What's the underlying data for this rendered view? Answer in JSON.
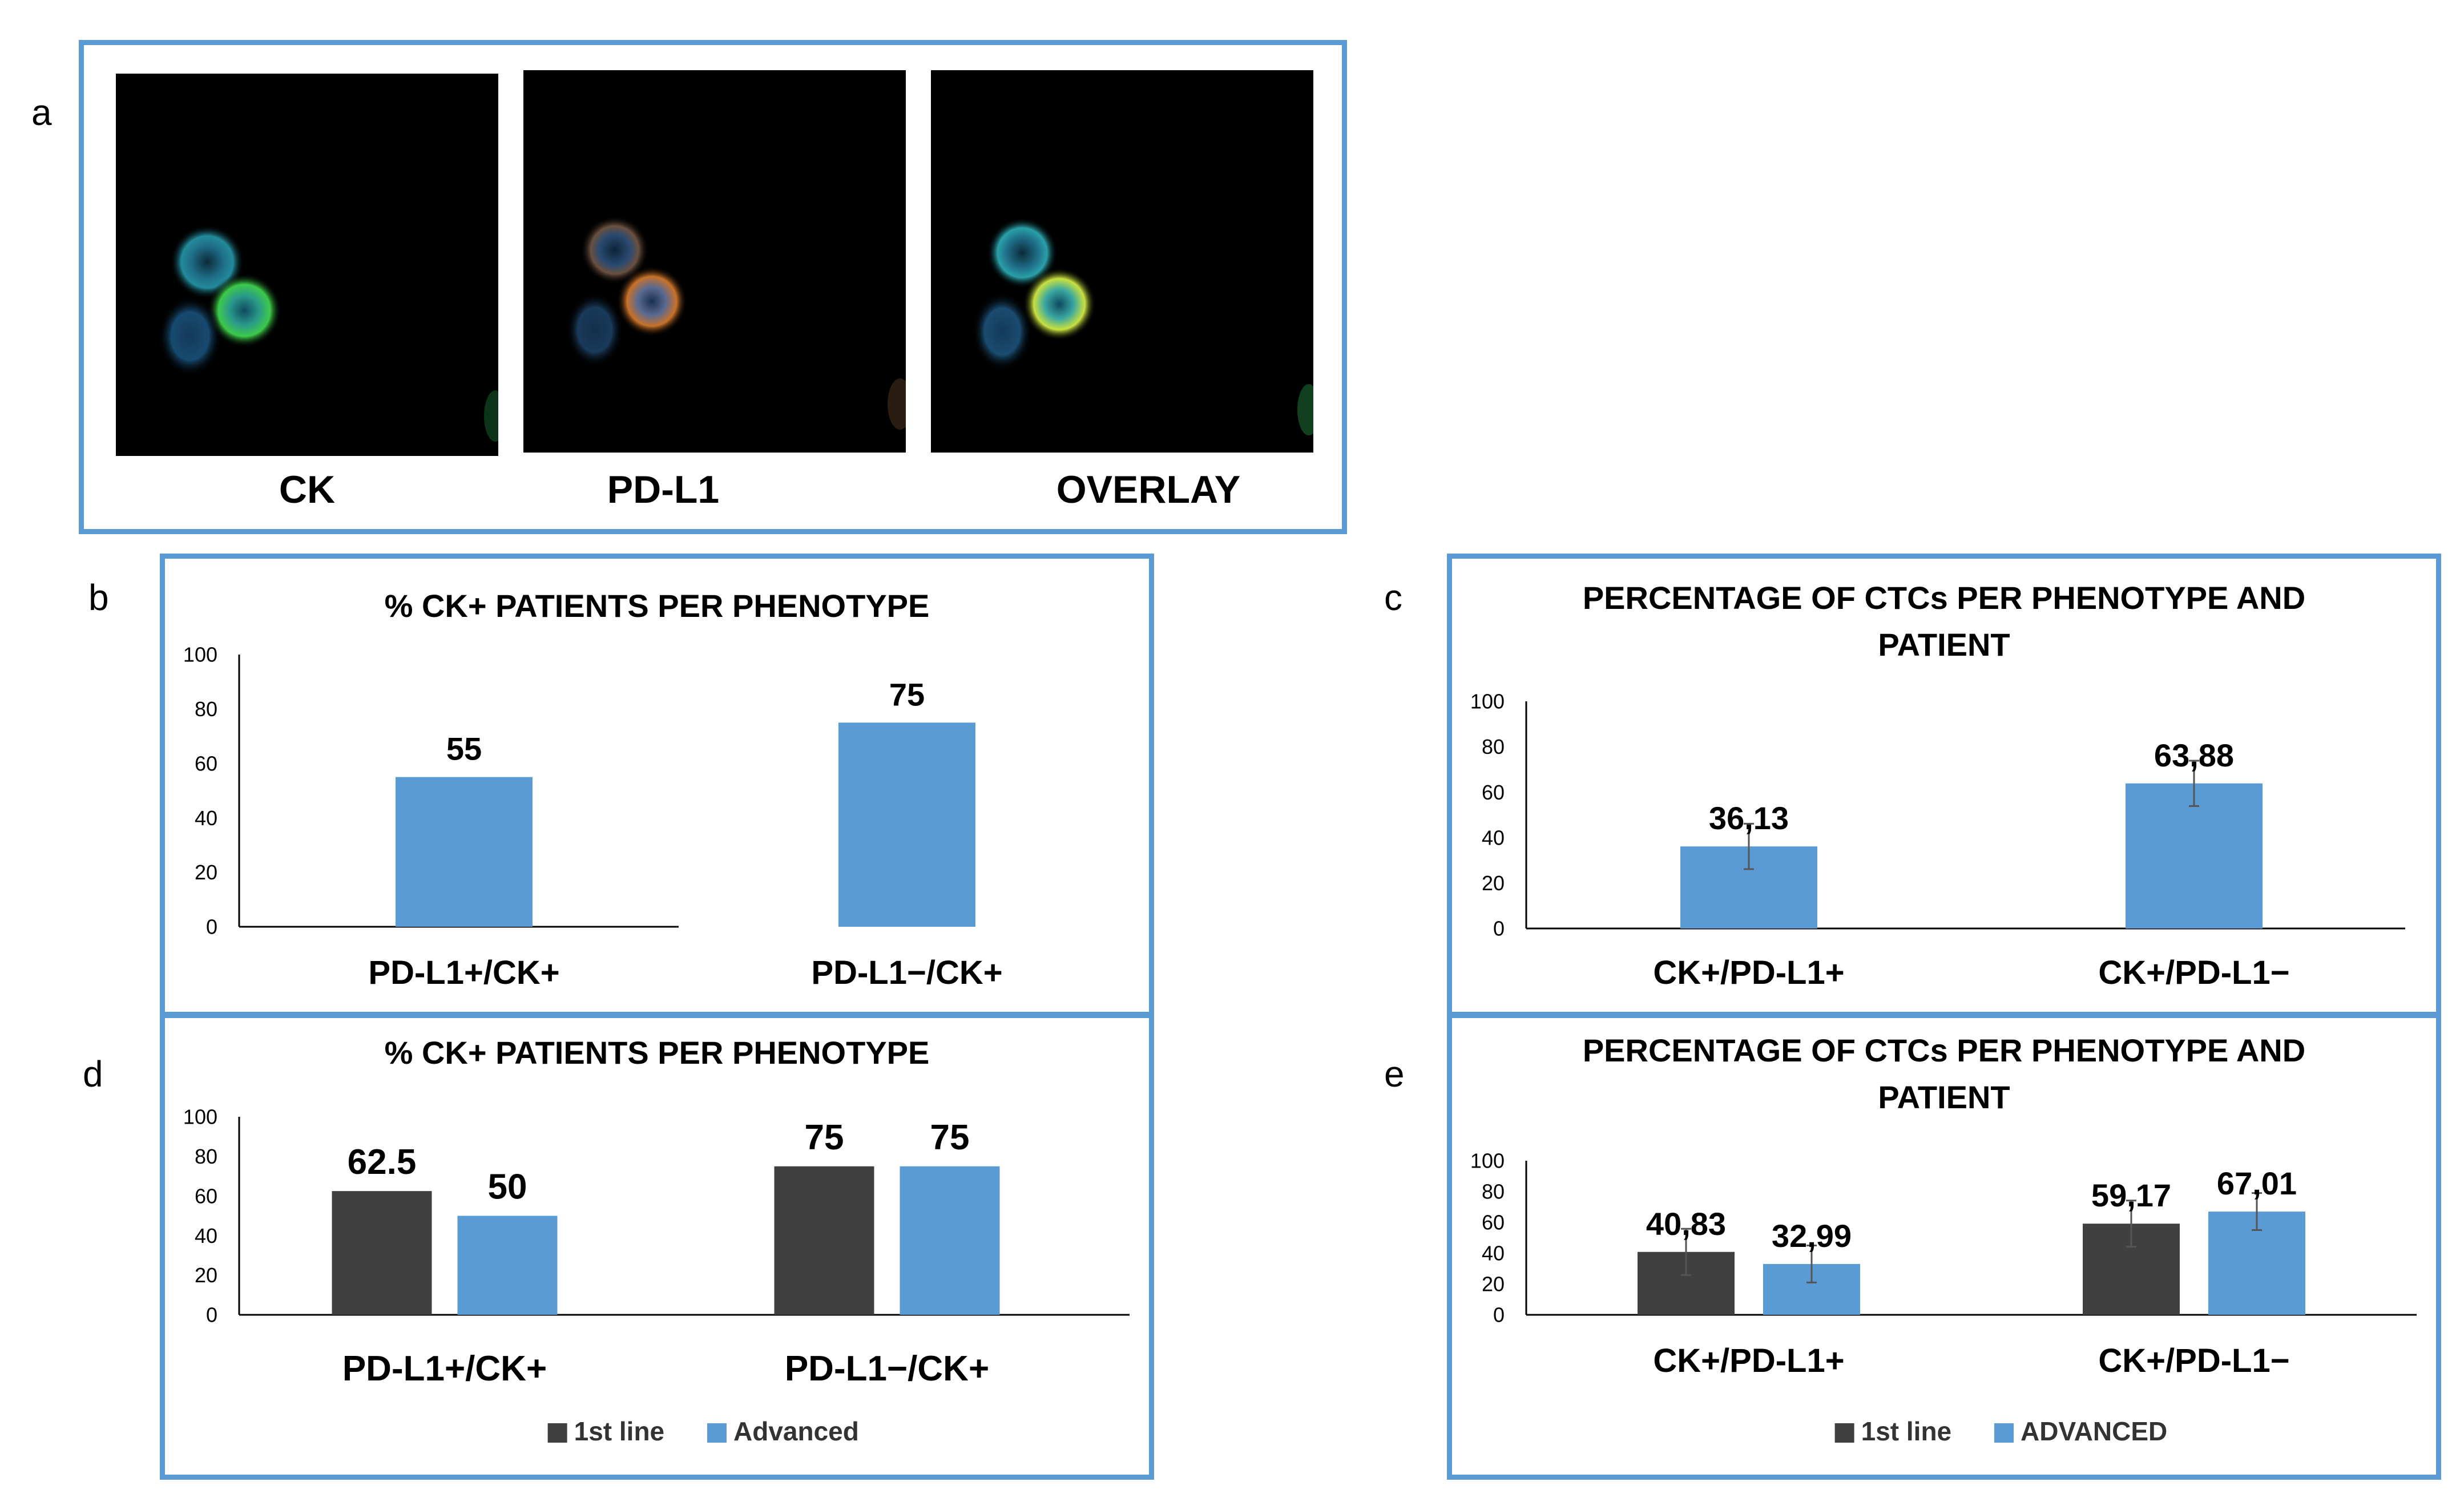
{
  "colors": {
    "first_line": "#404040",
    "advanced": "#5b9bd5",
    "frame": "#5b9bd5"
  },
  "panel_letters": [
    "a",
    "b",
    "c",
    "d",
    "e"
  ],
  "micro_labels": [
    "CK",
    "PD-L1",
    "OVERLAY"
  ],
  "chart_data": [
    {
      "id": "b",
      "type": "bar",
      "title": "% CK+ PATIENTS PER PHENOTYPE",
      "categories": [
        "PD-L1+/CK+",
        "PD-L1−/CK+"
      ],
      "series": [
        {
          "values": [
            55,
            75
          ],
          "labels": [
            "55",
            "75"
          ]
        }
      ],
      "ylim": [
        0,
        100
      ],
      "yticks": [
        0,
        20,
        40,
        60,
        80,
        100
      ],
      "error_bars": false,
      "legend": null
    },
    {
      "id": "c",
      "type": "bar",
      "title": "PERCENTAGE OF CTCs PER PHENOTYPE AND PATIENT",
      "categories": [
        "CK+/PD-L1+",
        "CK+/PD-L1−"
      ],
      "series": [
        {
          "values": [
            36.13,
            63.88
          ],
          "labels": [
            "36,13",
            "63,88"
          ],
          "err": [
            10,
            10
          ]
        }
      ],
      "ylim": [
        0,
        100
      ],
      "yticks": [
        0,
        20,
        40,
        60,
        80,
        100
      ],
      "error_bars": true,
      "legend": null
    },
    {
      "id": "d",
      "type": "bar",
      "title": "% CK+ PATIENTS PER PHENOTYPE",
      "categories": [
        "PD-L1+/CK+",
        "PD-L1−/CK+"
      ],
      "series": [
        {
          "name": "1st line",
          "values": [
            62.5,
            75
          ],
          "labels": [
            "62.5",
            "75"
          ]
        },
        {
          "name": "Advanced",
          "values": [
            50,
            75
          ],
          "labels": [
            "50",
            "75"
          ]
        }
      ],
      "ylim": [
        0,
        100
      ],
      "yticks": [
        0,
        20,
        40,
        60,
        80,
        100
      ],
      "error_bars": false,
      "legend": "bottom"
    },
    {
      "id": "e",
      "type": "bar",
      "title": "PERCENTAGE OF CTCs PER PHENOTYPE AND PATIENT",
      "categories": [
        "CK+/PD-L1+",
        "CK+/PD-L1−"
      ],
      "series": [
        {
          "name": "1st line",
          "values": [
            40.83,
            59.17
          ],
          "labels": [
            "40,83",
            "59,17"
          ],
          "err": [
            15,
            15
          ]
        },
        {
          "name": "ADVANCED",
          "values": [
            32.99,
            67.01
          ],
          "labels": [
            "32,99",
            "67,01"
          ],
          "err": [
            12,
            12
          ]
        }
      ],
      "ylim": [
        0,
        100
      ],
      "yticks": [
        0,
        20,
        40,
        60,
        80,
        100
      ],
      "error_bars": true,
      "legend": "bottom"
    }
  ]
}
